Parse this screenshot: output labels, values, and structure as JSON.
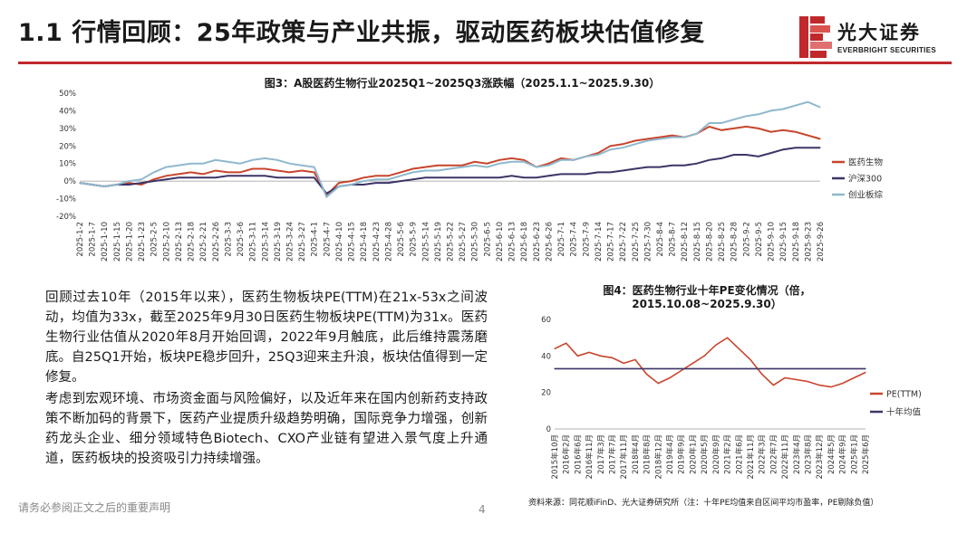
{
  "page": {
    "title": "1.1 行情回顾：25年政策与产业共振，驱动医药板块估值修复",
    "logo_cn": "光大证券",
    "logo_en": "EVERBRIGHT SECURITIES",
    "footer": "请务必参阅正文之后的重要声明",
    "page_number": "4",
    "source": "资料来源：同花顺iFinD、光大证券研究所（注：十年PE均值来自区间平均市盈率，PE剔除负值）",
    "colors": {
      "brand_red": "#c0282b",
      "line_red": "#c8452c",
      "line_navy": "#3d3466",
      "line_blue": "#8fb8cc"
    }
  },
  "text": {
    "para1": "回顾过去10年（2015年以来），医药生物板块PE(TTM)在21x-53x之间波动，均值为33x，截至2025年9月30日医药生物板块PE(TTM)为31x。医药生物行业估值从2020年8月开始回调，2022年9月触底，此后维持震荡磨底。自25Q1开始，板块PE稳步回升，25Q3迎来主升浪，板块估值得到一定修复。",
    "para2": "考虑到宏观环境、市场资金面与风险偏好，以及近年来在国内创新药支持政策不断加码的背景下，医药产业提质升级趋势明确，国际竞争力增强，创新药龙头企业、细分领域特色Biotech、CXO产业链有望进入景气度上升通道，医药板块的投资吸引力持续增强。"
  },
  "chart_data": [
    {
      "type": "line",
      "title": "图3：A股医药生物行业2025Q1~2025Q3涨跌幅（2025.1.1~2025.9.30）",
      "ylim": [
        -0.2,
        0.5
      ],
      "yticks": [
        "50%",
        "40%",
        "30%",
        "20%",
        "10%",
        "0%",
        "-10%",
        "-20%"
      ],
      "x_labels": [
        "2025-1-2",
        "2025-1-7",
        "2025-1-10",
        "2025-1-15",
        "2025-1-20",
        "2025-1-23",
        "2025-2-5",
        "2025-2-10",
        "2025-2-13",
        "2025-2-18",
        "2025-2-21",
        "2025-2-26",
        "2025-3-3",
        "2025-3-6",
        "2025-3-11",
        "2025-3-14",
        "2025-3-19",
        "2025-3-24",
        "2025-3-27",
        "2025-4-1",
        "2025-4-7",
        "2025-4-10",
        "2025-4-15",
        "2025-4-18",
        "2025-4-23",
        "2025-4-28",
        "2025-5-6",
        "2025-5-9",
        "2025-5-14",
        "2025-5-19",
        "2025-5-22",
        "2025-5-27",
        "2025-5-30",
        "2025-6-5",
        "2025-6-10",
        "2025-6-13",
        "2025-6-18",
        "2025-6-23",
        "2025-6-26",
        "2025-7-1",
        "2025-7-4",
        "2025-7-9",
        "2025-7-14",
        "2025-7-17",
        "2025-7-22",
        "2025-7-25",
        "2025-7-30",
        "2025-8-4",
        "2025-8-7",
        "2025-8-12",
        "2025-8-15",
        "2025-8-20",
        "2025-8-25",
        "2025-8-28",
        "2025-9-2",
        "2025-9-5",
        "2025-9-10",
        "2025-9-15",
        "2025-9-18",
        "2025-9-23",
        "2025-9-26"
      ],
      "legend_position": "right",
      "series": [
        {
          "name": "医药生物",
          "color": "#c8452c",
          "values": [
            -0.01,
            -0.02,
            -0.03,
            -0.02,
            -0.01,
            -0.02,
            0.01,
            0.03,
            0.04,
            0.05,
            0.04,
            0.06,
            0.05,
            0.05,
            0.07,
            0.07,
            0.06,
            0.05,
            0.06,
            0.05,
            -0.08,
            -0.01,
            0.0,
            0.02,
            0.03,
            0.03,
            0.05,
            0.07,
            0.08,
            0.09,
            0.09,
            0.09,
            0.11,
            0.1,
            0.12,
            0.13,
            0.12,
            0.08,
            0.1,
            0.13,
            0.12,
            0.14,
            0.16,
            0.2,
            0.21,
            0.23,
            0.24,
            0.25,
            0.26,
            0.25,
            0.27,
            0.31,
            0.29,
            0.3,
            0.31,
            0.3,
            0.28,
            0.29,
            0.28,
            0.26,
            0.24
          ]
        },
        {
          "name": "沪深300",
          "color": "#3d3466",
          "values": [
            -0.01,
            -0.02,
            -0.03,
            -0.02,
            -0.02,
            -0.01,
            0.0,
            0.01,
            0.02,
            0.02,
            0.02,
            0.02,
            0.03,
            0.03,
            0.03,
            0.03,
            0.02,
            0.02,
            0.02,
            0.02,
            -0.07,
            -0.03,
            -0.02,
            -0.02,
            -0.01,
            -0.01,
            0.0,
            0.01,
            0.02,
            0.02,
            0.02,
            0.02,
            0.02,
            0.02,
            0.02,
            0.03,
            0.02,
            0.02,
            0.03,
            0.04,
            0.04,
            0.04,
            0.05,
            0.05,
            0.06,
            0.07,
            0.08,
            0.08,
            0.09,
            0.09,
            0.1,
            0.12,
            0.13,
            0.15,
            0.15,
            0.14,
            0.16,
            0.18,
            0.19,
            0.19,
            0.19
          ]
        },
        {
          "name": "创业板综",
          "color": "#8fb8cc",
          "values": [
            -0.01,
            -0.02,
            -0.03,
            -0.02,
            0.0,
            0.01,
            0.05,
            0.08,
            0.09,
            0.1,
            0.1,
            0.12,
            0.11,
            0.1,
            0.12,
            0.13,
            0.12,
            0.1,
            0.09,
            0.08,
            -0.09,
            -0.03,
            -0.02,
            0.0,
            0.01,
            0.01,
            0.03,
            0.05,
            0.06,
            0.06,
            0.07,
            0.08,
            0.09,
            0.08,
            0.1,
            0.11,
            0.11,
            0.08,
            0.09,
            0.12,
            0.12,
            0.14,
            0.15,
            0.18,
            0.19,
            0.21,
            0.23,
            0.24,
            0.25,
            0.25,
            0.27,
            0.33,
            0.33,
            0.35,
            0.37,
            0.38,
            0.4,
            0.41,
            0.43,
            0.45,
            0.42
          ]
        }
      ]
    },
    {
      "type": "line",
      "title": "图4：医药生物行业十年PE变化情况（倍，2015.10.08~2025.9.30）",
      "ylim": [
        0,
        60
      ],
      "yticks": [
        "60",
        "40",
        "20",
        "0"
      ],
      "x_labels": [
        "2015年10月",
        "2016年2月",
        "2016年6月",
        "2016年11月",
        "2017年3月",
        "2017年7月",
        "2017年11月",
        "2018年4月",
        "2018年8月",
        "2018年12月",
        "2019年4月",
        "2019年9月",
        "2020年1月",
        "2020年5月",
        "2020年9月",
        "2021年2月",
        "2021年6月",
        "2021年11月",
        "2022年3月",
        "2022年7月",
        "2022年11月",
        "2023年4月",
        "2023年8月",
        "2023年12月",
        "2024年5月",
        "2024年9月",
        "2025年1月",
        "2025年6月"
      ],
      "legend_position": "right",
      "series": [
        {
          "name": "PE(TTM)",
          "color": "#c8452c",
          "values": [
            44,
            47,
            40,
            42,
            40,
            39,
            36,
            38,
            30,
            25,
            28,
            32,
            36,
            40,
            46,
            50,
            44,
            38,
            30,
            24,
            28,
            27,
            26,
            24,
            23,
            25,
            28,
            31
          ]
        },
        {
          "name": "十年均值",
          "color": "#3d3466",
          "values": [
            33,
            33,
            33,
            33,
            33,
            33,
            33,
            33,
            33,
            33,
            33,
            33,
            33,
            33,
            33,
            33,
            33,
            33,
            33,
            33,
            33,
            33,
            33,
            33,
            33,
            33,
            33,
            33
          ]
        }
      ]
    }
  ]
}
